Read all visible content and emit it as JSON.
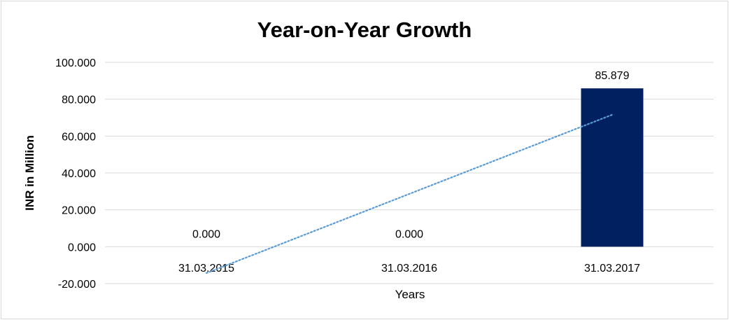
{
  "chart_data": {
    "type": "bar",
    "title": "Year-on-Year Growth",
    "xlabel": "Years",
    "ylabel": "INR in Million",
    "categories": [
      "31.03.2015",
      "31.03.2016",
      "31.03.2017"
    ],
    "values": [
      0,
      0,
      85.879
    ],
    "data_labels": [
      "0.000",
      "0.000",
      "85.879"
    ],
    "ylim": [
      -20,
      100
    ],
    "yticks": [
      -20,
      0,
      20,
      40,
      60,
      80,
      100
    ],
    "ytick_labels": [
      "-20.000",
      "0.000",
      "20.000",
      "40.000",
      "60.000",
      "80.000",
      "100.000"
    ],
    "grid": true,
    "legend": "none",
    "trendline": {
      "type": "linear",
      "style": "dotted",
      "color": "#5b9bd5"
    },
    "bar_color": "#002060"
  }
}
